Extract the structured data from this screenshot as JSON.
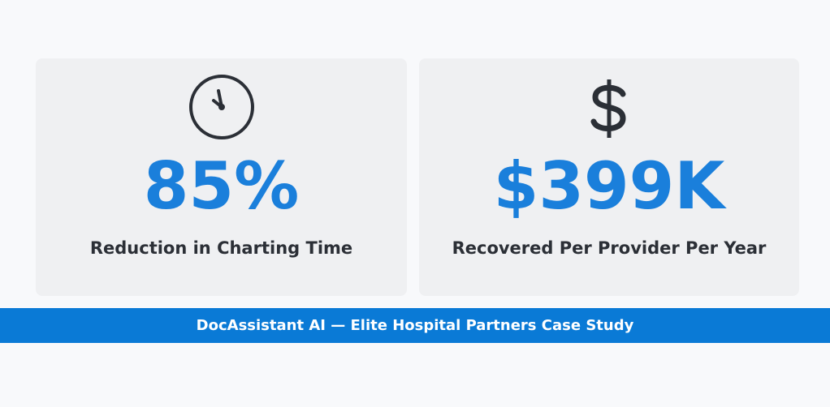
{
  "stats": [
    {
      "value": "85%",
      "label": "Reduction in Charting Time"
    },
    {
      "value": "$399K",
      "label": "Recovered Per Provider Per Year"
    }
  ],
  "banner": "DocAssistant AI — Elite Hospital Partners Case Study"
}
